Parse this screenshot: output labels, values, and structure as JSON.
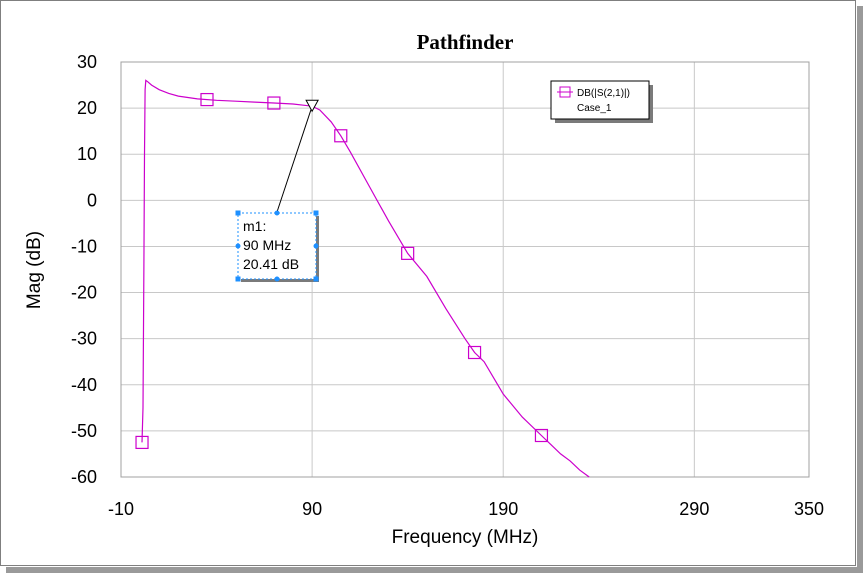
{
  "chart_data": {
    "type": "line",
    "title": "Pathfinder",
    "xlabel": "Frequency (MHz)",
    "ylabel": "Mag (dB)",
    "xlim": [
      -10,
      350
    ],
    "ylim": [
      -60,
      30
    ],
    "x_ticks": [
      "-10",
      "90",
      "190",
      "290",
      "350"
    ],
    "y_ticks": [
      "30",
      "20",
      "10",
      "0",
      "-10",
      "-20",
      "-30",
      "-40",
      "-50",
      "-60"
    ],
    "grid": true,
    "legend_position": "top-right",
    "series": [
      {
        "name": "DB(|S(2,1)|)",
        "case": "Case_1",
        "color": "#cc00cc",
        "marker": "square",
        "x": [
          1,
          1.5,
          2,
          2.3,
          2.6,
          3,
          4,
          6,
          10,
          15,
          20,
          30,
          40,
          50,
          60,
          70,
          80,
          86,
          90,
          94,
          100,
          105,
          110,
          120,
          130,
          140,
          150,
          160,
          170,
          175,
          180,
          190,
          200,
          210,
          215,
          220,
          225,
          230,
          235
        ],
        "y": [
          -52.5,
          -45,
          -14,
          10,
          24,
          26,
          25.7,
          25,
          24,
          23.2,
          22.6,
          22,
          21.7,
          21.5,
          21.3,
          21.1,
          20.9,
          20.6,
          20.41,
          19.6,
          17,
          14,
          10.5,
          3,
          -4.5,
          -11.5,
          -16.5,
          -23.5,
          -30,
          -33,
          -35,
          -42,
          -47,
          -51,
          -53,
          -55,
          -56.5,
          -58.5,
          -60
        ],
        "marker_x": [
          1,
          35,
          70,
          105,
          140,
          175,
          210
        ]
      }
    ],
    "markers": [
      {
        "name": "m1:",
        "x_text": "90 MHz",
        "y_text": "20.41 dB",
        "x": 90,
        "y": 20.41
      }
    ]
  },
  "colors": {
    "trace": "#cc00cc",
    "grid": "#c8c8c8",
    "marker_handle": "#1e90ff"
  }
}
